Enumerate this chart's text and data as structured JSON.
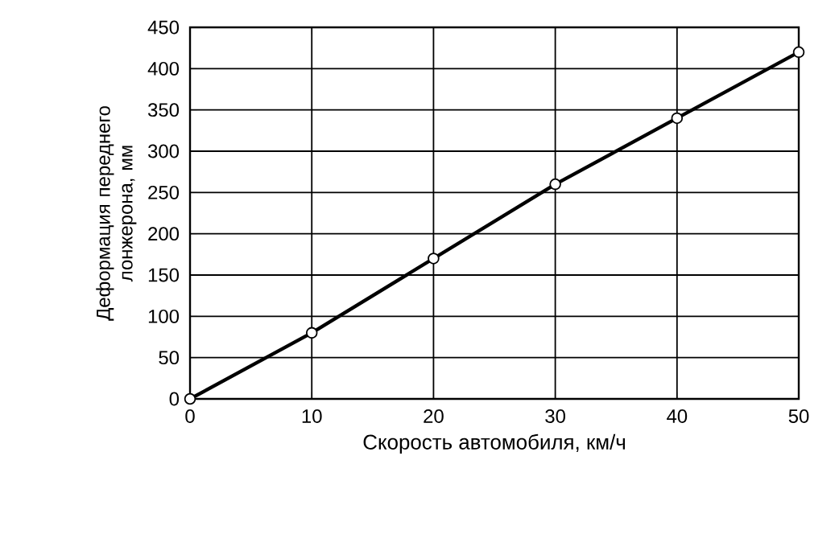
{
  "chart_data": {
    "type": "line",
    "xlabel": "Скорость автомобиля, км/ч",
    "ylabel": "Деформация переднего лонжерона, мм",
    "x": [
      0,
      10,
      20,
      30,
      40,
      50
    ],
    "series": [
      {
        "color": "#000000",
        "values": [
          0,
          80,
          170,
          260,
          340,
          420
        ]
      }
    ],
    "xlim": [
      0,
      50
    ],
    "xticks": [
      0,
      10,
      20,
      30,
      40,
      50
    ],
    "ylim": [
      0,
      450
    ],
    "yticks": [
      0,
      50,
      100,
      150,
      200,
      250,
      300,
      350,
      400,
      450
    ],
    "grid": true,
    "marker": "circle",
    "line_style": "solid"
  }
}
